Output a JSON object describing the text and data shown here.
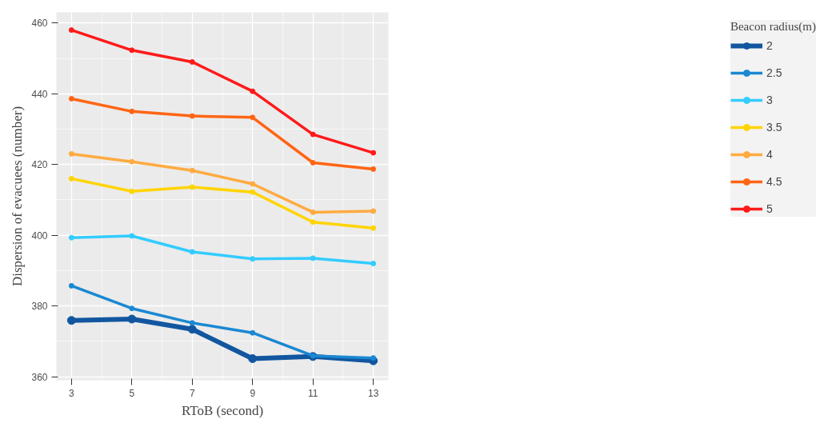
{
  "chart_data": {
    "type": "line",
    "xlabel": "RToB (second)",
    "ylabel": "Dispersion of evacuees (number)",
    "legend_title": "Beacon radius(m)",
    "x": [
      3,
      5,
      7,
      9,
      11,
      13
    ],
    "series": [
      {
        "name": "2",
        "color": "#1256a0",
        "values": [
          375.9,
          376.3,
          373.4,
          365.1,
          365.7,
          364.5
        ]
      },
      {
        "name": "2.5",
        "color": "#1a88d2",
        "values": [
          385.7,
          379.3,
          375.2,
          372.4,
          365.9,
          365.3
        ]
      },
      {
        "name": "3",
        "color": "#33ccff",
        "values": [
          399.3,
          399.8,
          395.3,
          393.3,
          393.5,
          392.0
        ]
      },
      {
        "name": "3.5",
        "color": "#ffd400",
        "values": [
          416.0,
          412.4,
          413.6,
          412.2,
          403.7,
          402.0
        ]
      },
      {
        "name": "4",
        "color": "#ffab40",
        "values": [
          423.0,
          420.8,
          418.3,
          414.5,
          406.5,
          406.8
        ]
      },
      {
        "name": "4.5",
        "color": "#ff6514",
        "values": [
          438.6,
          435.0,
          433.7,
          433.3,
          420.5,
          418.7
        ]
      },
      {
        "name": "5",
        "color": "#ff1a1a",
        "values": [
          458.0,
          452.3,
          449.0,
          440.7,
          428.5,
          423.3
        ]
      }
    ],
    "xlim": [
      2.5,
      13.5
    ],
    "ylim": [
      359,
      463
    ],
    "xticks": [
      3,
      5,
      7,
      9,
      11,
      13
    ],
    "yticks": [
      360,
      380,
      400,
      420,
      440,
      460
    ],
    "grid": true,
    "legend": "right",
    "marker": "circle",
    "line_style": "solid"
  }
}
